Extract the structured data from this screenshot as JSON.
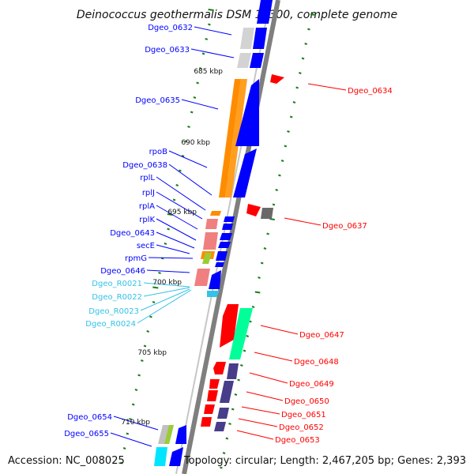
{
  "title": "Deinococcus geothermalis DSM 11300, complete genome",
  "footer": {
    "accession": "Accession: NC_008025",
    "summary": "Topology: circular; Length: 2,467,205 bp; Genes: 2,393"
  },
  "kbp_labels": [
    "685 kbp",
    "690 kbp",
    "695 kbp",
    "700 kbp",
    "705 kbp",
    "710 kbp"
  ],
  "colors": {
    "backbone": "#7f7f7f",
    "cds_forward": "#0000ff",
    "cds_reverse": "#ff0000",
    "rna": "#33c3e8",
    "tick": "#1a7f1a",
    "orange": "#ff8c00",
    "pink": "#f08080",
    "teal": "#00ff99",
    "slate": "#483d8b",
    "grey": "#a9a9a9"
  },
  "left_labels": [
    {
      "text": "Dgeo_0632",
      "kind": "gene"
    },
    {
      "text": "Dgeo_0633",
      "kind": "gene"
    },
    {
      "text": "Dgeo_0635",
      "kind": "gene"
    },
    {
      "text": "rpoB",
      "kind": "gene"
    },
    {
      "text": "Dgeo_0638",
      "kind": "gene"
    },
    {
      "text": "rplL",
      "kind": "gene"
    },
    {
      "text": "rplJ",
      "kind": "gene"
    },
    {
      "text": "rplA",
      "kind": "gene"
    },
    {
      "text": "rplK",
      "kind": "gene"
    },
    {
      "text": "Dgeo_0643",
      "kind": "gene"
    },
    {
      "text": "secE",
      "kind": "gene"
    },
    {
      "text": "rpmG",
      "kind": "gene"
    },
    {
      "text": "Dgeo_0646",
      "kind": "gene"
    },
    {
      "text": "Dgeo_R0021",
      "kind": "rna"
    },
    {
      "text": "Dgeo_R0022",
      "kind": "rna"
    },
    {
      "text": "Dgeo_R0023",
      "kind": "rna"
    },
    {
      "text": "Dgeo_R0024",
      "kind": "rna"
    },
    {
      "text": "Dgeo_0654",
      "kind": "gene"
    },
    {
      "text": "Dgeo_0655",
      "kind": "gene"
    }
  ],
  "right_labels": [
    {
      "text": "Dgeo_0634"
    },
    {
      "text": "Dgeo_0637"
    },
    {
      "text": "Dgeo_0647"
    },
    {
      "text": "Dgeo_0648"
    },
    {
      "text": "Dgeo_0649"
    },
    {
      "text": "Dgeo_0650"
    },
    {
      "text": "Dgeo_0651"
    },
    {
      "text": "Dgeo_0652"
    },
    {
      "text": "Dgeo_0653"
    }
  ]
}
